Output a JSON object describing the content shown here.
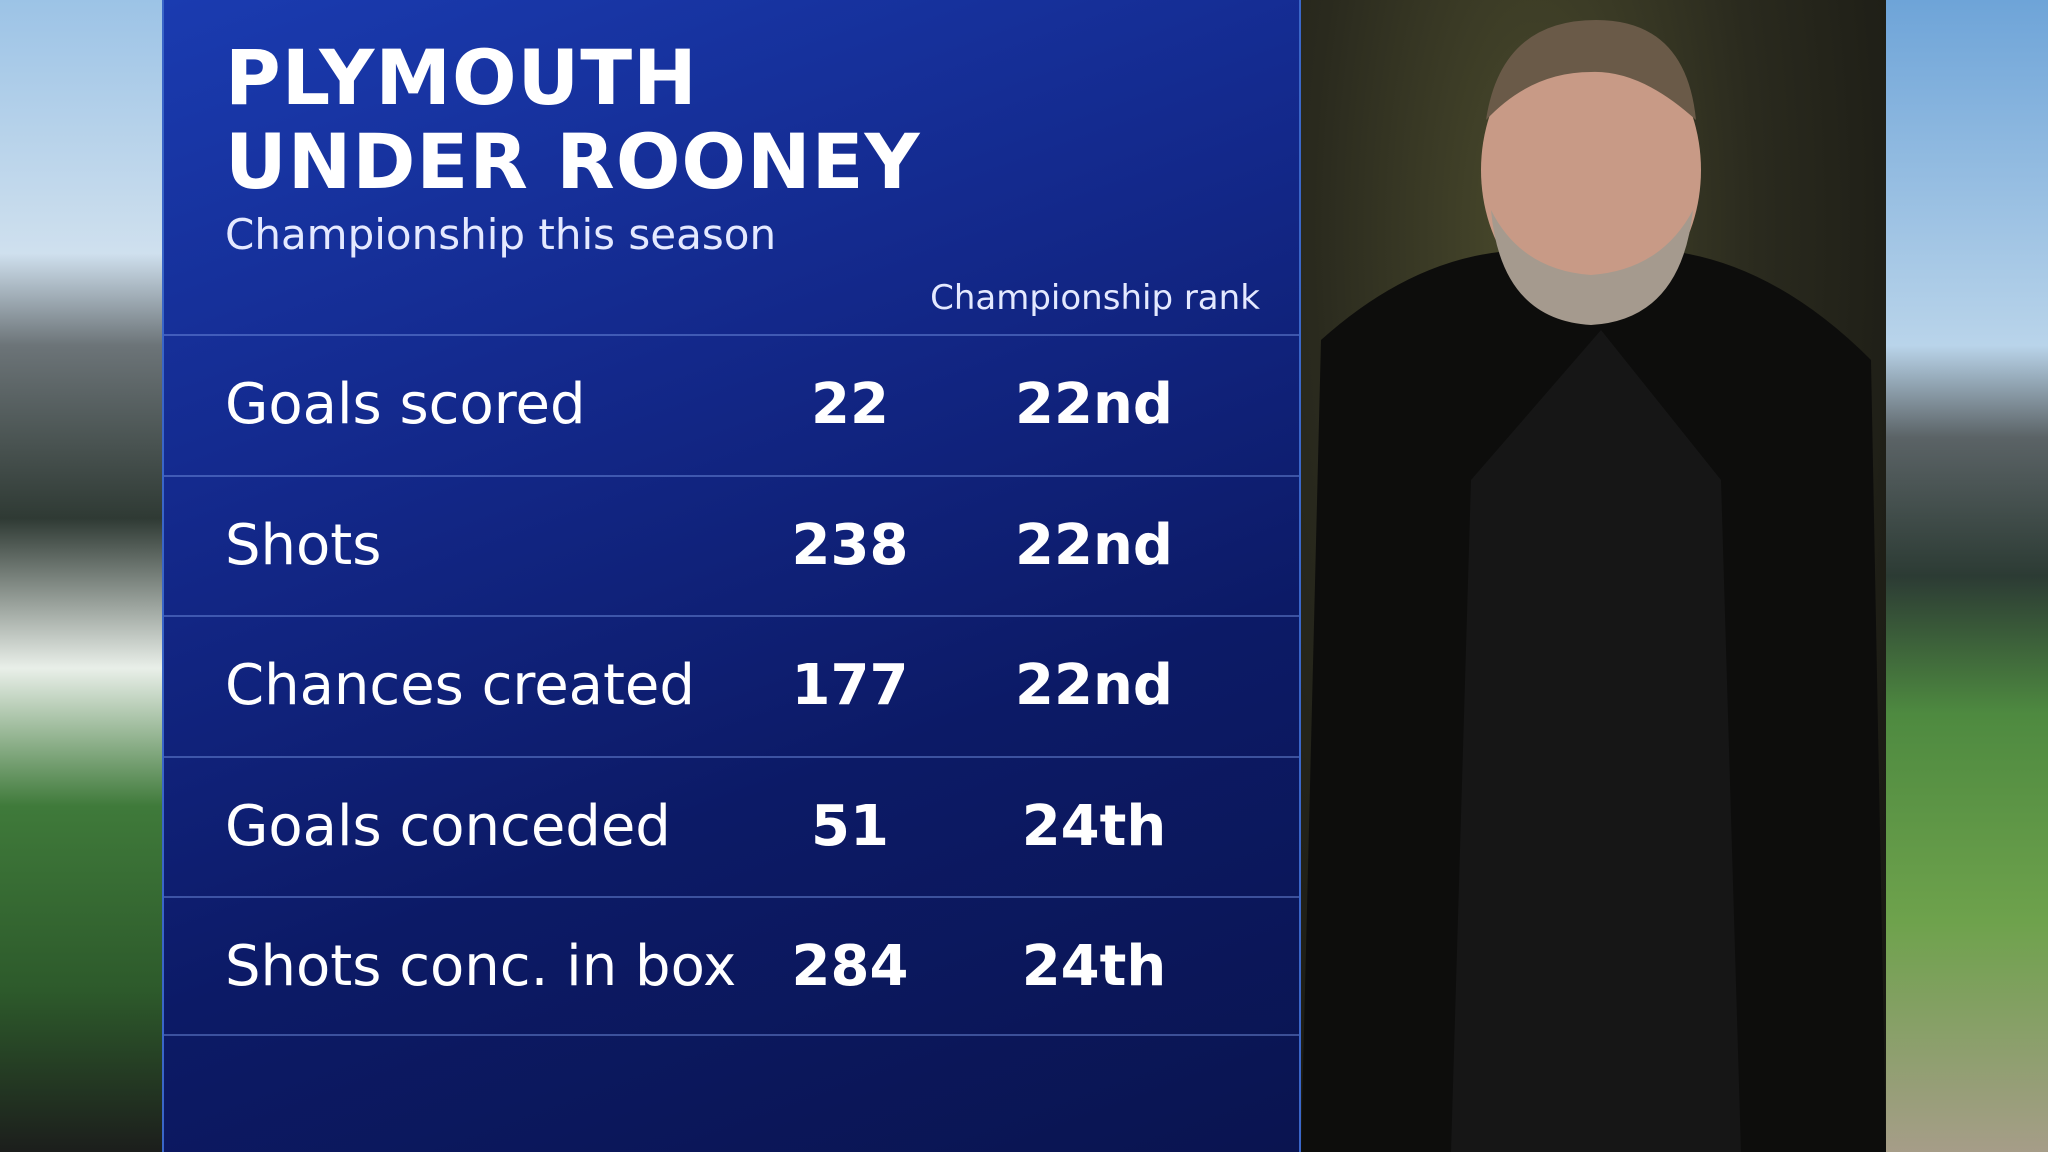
{
  "header": {
    "title": "PLYMOUTH UNDER ROONEY",
    "subtitle": "Championship this season"
  },
  "table": {
    "column_header": "Championship rank",
    "rows": [
      [
        "Goals scored",
        22,
        "22nd"
      ],
      [
        "Shots",
        238,
        "22nd"
      ],
      [
        "Chances created",
        177,
        "22nd"
      ],
      [
        "Goals conceded",
        51,
        "24th"
      ],
      [
        "Shots conc. in box",
        284,
        "24th"
      ]
    ]
  }
}
